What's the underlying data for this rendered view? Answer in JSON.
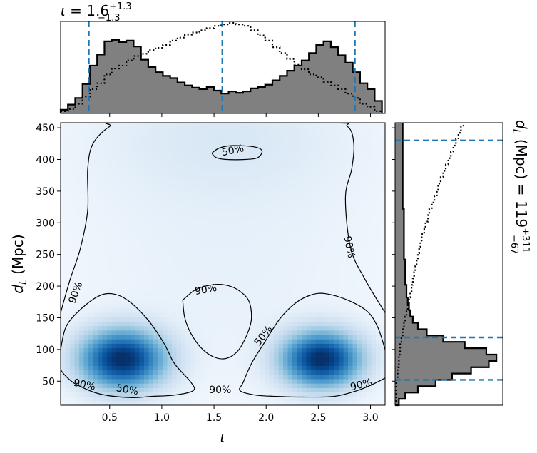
{
  "chart_data": {
    "type": "heatmap",
    "subtype": "corner plot (joint density with marginal histograms)",
    "main": {
      "xlabel": "ι",
      "ylabel_symbol": "d",
      "ylabel_sub": "L",
      "ylabel_unit": " (Mpc)",
      "xlim": [
        0.03,
        3.14
      ],
      "ylim": [
        12,
        458
      ],
      "xticks": [
        0.5,
        1.0,
        1.5,
        2.0,
        2.5,
        3.0
      ],
      "xtick_labels": [
        "0.5",
        "1.0",
        "1.5",
        "2.0",
        "2.5",
        "3.0"
      ],
      "yticks": [
        50,
        100,
        150,
        200,
        250,
        300,
        350,
        400,
        450
      ],
      "ytick_labels": [
        "50",
        "100",
        "150",
        "200",
        "250",
        "300",
        "350",
        "400",
        "450"
      ],
      "colormap": [
        "#f7fbff",
        "#deebf7",
        "#c6dbef",
        "#9ecae1",
        "#6baed6",
        "#4292c6",
        "#2171b5",
        "#08519c",
        "#08306b"
      ],
      "density_peaks": [
        {
          "x": 0.62,
          "y": 85,
          "sx": 0.28,
          "sy": 32,
          "w": 1.0
        },
        {
          "x": 2.53,
          "y": 85,
          "sx": 0.26,
          "sy": 30,
          "w": 1.0
        },
        {
          "x": 1.6,
          "y": 440,
          "sx": 0.9,
          "sy": 70,
          "w": 0.08
        },
        {
          "x": 1.6,
          "y": 250,
          "sx": 1.2,
          "sy": 180,
          "w": 0.05
        }
      ],
      "contour_labels": [
        {
          "text": "50%",
          "x": 1.68,
          "y": 415,
          "rot": -12
        },
        {
          "text": "90%",
          "x": 2.8,
          "y": 262,
          "rot": 78
        },
        {
          "text": "90%",
          "x": 0.17,
          "y": 190,
          "rot": -70
        },
        {
          "text": "90%",
          "x": 1.42,
          "y": 195,
          "rot": -10
        },
        {
          "text": "50%",
          "x": 1.97,
          "y": 122,
          "rot": -52
        },
        {
          "text": "90%",
          "x": 0.26,
          "y": 45,
          "rot": 12
        },
        {
          "text": "50%",
          "x": 0.67,
          "y": 37,
          "rot": 10
        },
        {
          "text": "90%",
          "x": 1.56,
          "y": 37,
          "rot": 0
        },
        {
          "text": "90%",
          "x": 2.91,
          "y": 45,
          "rot": -14
        }
      ],
      "contours": [
        {
          "name": "90% outer top",
          "points": [
            [
              0.03,
              158
            ],
            [
              0.12,
              210
            ],
            [
              0.22,
              260
            ],
            [
              0.29,
              320
            ],
            [
              0.29,
              385
            ],
            [
              0.34,
              425
            ],
            [
              0.5,
              452
            ],
            [
              0.65,
              458
            ],
            [
              2.57,
              458
            ],
            [
              2.78,
              452
            ],
            [
              2.84,
              425
            ],
            [
              2.82,
              385
            ],
            [
              2.76,
              340
            ],
            [
              2.81,
              260
            ],
            [
              2.95,
              210
            ],
            [
              3.14,
              158
            ]
          ]
        },
        {
          "name": "90% left lobe",
          "points": [
            [
              0.03,
              100
            ],
            [
              0.08,
              135
            ],
            [
              0.2,
              160
            ],
            [
              0.38,
              183
            ],
            [
              0.52,
              188
            ],
            [
              0.67,
              178
            ],
            [
              0.86,
              148
            ],
            [
              1.02,
              110
            ],
            [
              1.12,
              78
            ],
            [
              1.28,
              48
            ],
            [
              1.3,
              35
            ],
            [
              1.12,
              28
            ],
            [
              0.9,
              26
            ],
            [
              0.7,
              24
            ],
            [
              0.4,
              30
            ],
            [
              0.18,
              45
            ],
            [
              0.08,
              58
            ],
            [
              0.03,
              68
            ]
          ]
        },
        {
          "name": "90% right lobe",
          "points": [
            [
              3.14,
              100
            ],
            [
              3.07,
              135
            ],
            [
              2.97,
              160
            ],
            [
              2.78,
              178
            ],
            [
              2.57,
              188
            ],
            [
              2.43,
              186
            ],
            [
              2.28,
              173
            ],
            [
              2.13,
              148
            ],
            [
              1.98,
              110
            ],
            [
              1.86,
              78
            ],
            [
              1.78,
              48
            ],
            [
              1.75,
              35
            ],
            [
              1.9,
              28
            ],
            [
              2.1,
              26
            ],
            [
              2.35,
              25
            ],
            [
              2.65,
              26
            ],
            [
              2.87,
              35
            ],
            [
              3.02,
              45
            ],
            [
              3.14,
              55
            ]
          ]
        },
        {
          "name": "90% center",
          "points": [
            [
              1.2,
              178
            ],
            [
              1.33,
              195
            ],
            [
              1.48,
              202
            ],
            [
              1.6,
              202
            ],
            [
              1.72,
              195
            ],
            [
              1.83,
              178
            ],
            [
              1.86,
              150
            ],
            [
              1.82,
              125
            ],
            [
              1.73,
              98
            ],
            [
              1.62,
              86
            ],
            [
              1.5,
              88
            ],
            [
              1.38,
              102
            ],
            [
              1.28,
              125
            ],
            [
              1.22,
              150
            ],
            [
              1.2,
              178
            ]
          ]
        },
        {
          "name": "50% top",
          "points": [
            [
              1.48,
              410
            ],
            [
              1.55,
              418
            ],
            [
              1.68,
              422
            ],
            [
              1.88,
              420
            ],
            [
              1.96,
              414
            ],
            [
              1.92,
              403
            ],
            [
              1.8,
              400
            ],
            [
              1.62,
              400
            ],
            [
              1.52,
              403
            ],
            [
              1.48,
              410
            ]
          ]
        }
      ]
    },
    "top_marginal": {
      "title_symbol": "ι",
      "title_value": " = 1.6",
      "title_sup": "+1.3",
      "title_sub": "−1.3",
      "bins_x": [
        0.03,
        0.1,
        0.17,
        0.24,
        0.31,
        0.38,
        0.45,
        0.52,
        0.59,
        0.66,
        0.73,
        0.8,
        0.87,
        0.94,
        1.01,
        1.08,
        1.15,
        1.22,
        1.29,
        1.36,
        1.43,
        1.5,
        1.57,
        1.64,
        1.71,
        1.78,
        1.85,
        1.92,
        1.99,
        2.06,
        2.13,
        2.2,
        2.27,
        2.34,
        2.41,
        2.48,
        2.55,
        2.62,
        2.69,
        2.76,
        2.83,
        2.9,
        2.97,
        3.04,
        3.11
      ],
      "filled_values": [
        5,
        12,
        21,
        40,
        65,
        80,
        98,
        100,
        97,
        99,
        91,
        73,
        63,
        56,
        51,
        48,
        42,
        38,
        35,
        33,
        36,
        31,
        27,
        30,
        28,
        30,
        34,
        36,
        39,
        45,
        51,
        58,
        65,
        72,
        82,
        93,
        98,
        90,
        79,
        69,
        56,
        41,
        33,
        17
      ],
      "dotted_values": [
        3,
        6,
        13,
        23,
        33,
        41,
        53,
        61,
        65,
        72,
        78,
        81,
        86,
        89,
        93,
        99,
        103,
        107,
        110,
        113,
        116,
        119,
        121,
        123,
        121,
        119,
        113,
        106,
        99,
        90,
        82,
        74,
        66,
        60,
        53,
        49,
        43,
        38,
        33,
        27,
        21,
        13,
        9,
        3
      ],
      "vlines": [
        0.3,
        1.58,
        2.85
      ],
      "ymax": 125
    },
    "right_marginal": {
      "title_symbol": "d",
      "title_sub_L": "L",
      "title_value": " (Mpc) = 119",
      "title_sup": "+311",
      "title_sub": "−67",
      "bins_y": [
        12,
        22,
        32,
        42,
        52,
        62,
        72,
        82,
        92,
        102,
        112,
        122,
        132,
        142,
        152,
        162,
        172,
        182,
        192,
        202,
        212,
        222,
        232,
        242,
        252,
        262,
        272,
        282,
        292,
        302,
        312,
        322,
        332,
        342,
        352,
        362,
        372,
        382,
        392,
        402,
        412,
        422,
        432,
        442,
        452,
        458
      ],
      "filled_values": [
        3,
        8,
        18,
        32,
        45,
        60,
        74,
        80,
        72,
        55,
        38,
        25,
        18,
        14,
        12,
        11,
        10,
        9,
        9,
        8,
        8,
        8,
        8,
        7,
        7,
        7,
        7,
        7,
        7,
        7,
        7,
        6,
        6,
        6,
        6,
        6,
        6,
        6,
        6,
        6,
        6,
        6,
        6,
        6,
        6
      ],
      "dotted_values": [
        1,
        1,
        1,
        1,
        2,
        2,
        3,
        3,
        4,
        4,
        5,
        6,
        7,
        8,
        9,
        10,
        11,
        12,
        13,
        14,
        15,
        16,
        17,
        18,
        19,
        20,
        21,
        23,
        24,
        26,
        27,
        29,
        31,
        33,
        34,
        36,
        38,
        40,
        42,
        44,
        46,
        48,
        50,
        52,
        54
      ],
      "hlines": [
        52,
        119,
        430
      ],
      "xmax": 85
    }
  }
}
